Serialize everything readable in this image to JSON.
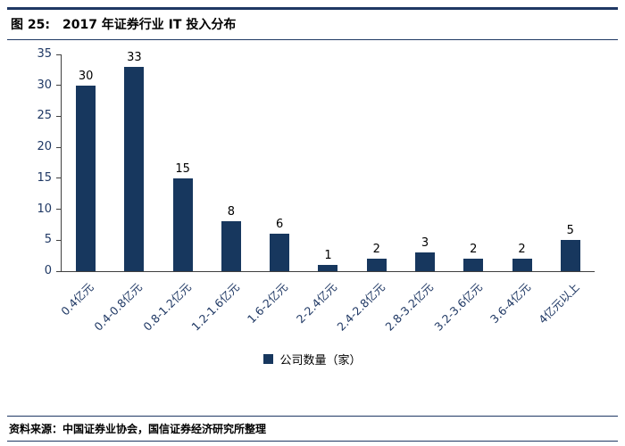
{
  "header": {
    "figure_label": "图 25:",
    "figure_title": "2017 年证券行业 IT 投入分布"
  },
  "legend": {
    "label": "公司数量（家）"
  },
  "footer": {
    "source": "资料来源：中国证券业协会，国信证券经济研究所整理"
  },
  "colors": {
    "bar": "#17375E",
    "accent": "#1F3864"
  },
  "chart_data": {
    "type": "bar",
    "title": "2017 年证券行业 IT 投入分布",
    "categories": [
      "0.4亿元",
      "0.4-0.8亿元",
      "0.8-1.2亿元",
      "1.2-1.6亿元",
      "1.6-2亿元",
      "2-2.4亿元",
      "2.4-2.8亿元",
      "2.8-3.2亿元",
      "3.2-3.6亿元",
      "3.6-4亿元",
      "4亿元以上"
    ],
    "values": [
      30,
      33,
      15,
      8,
      6,
      1,
      2,
      3,
      2,
      2,
      5
    ],
    "series_name": "公司数量（家）",
    "xlabel": "",
    "ylabel": "",
    "ylim": [
      0,
      35
    ],
    "yticks": [
      0,
      5,
      10,
      15,
      20,
      25,
      30,
      35
    ],
    "grid": false,
    "legend_position": "bottom",
    "data_labels": true
  }
}
